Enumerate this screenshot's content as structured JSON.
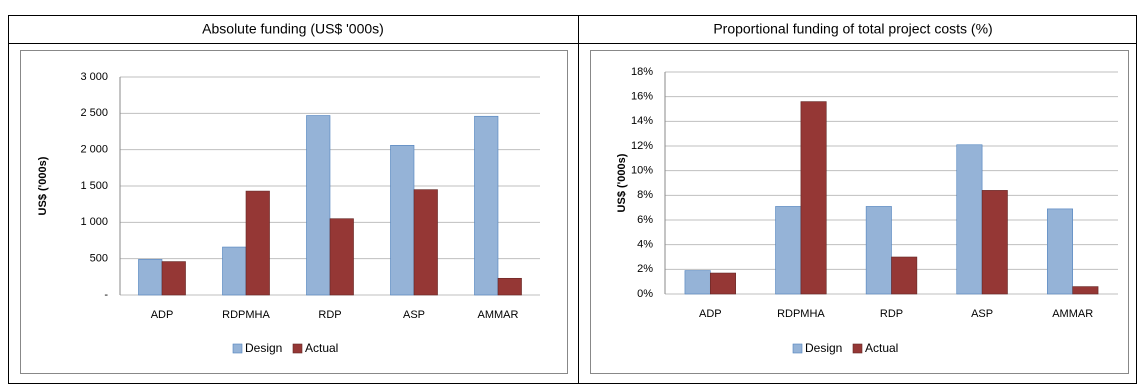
{
  "chart_data": [
    {
      "type": "bar",
      "title": "Absolute funding (US$ '000s)",
      "y_label": "US$ ('000s)",
      "categories": [
        "ADP",
        "RDPMHA",
        "RDP",
        "ASP",
        "AMMAR"
      ],
      "series": [
        {
          "name": "Design",
          "color": "#95b3d7",
          "values": [
            490,
            660,
            2470,
            2060,
            2460
          ]
        },
        {
          "name": "Actual",
          "color": "#953735",
          "values": [
            460,
            1430,
            1050,
            1450,
            230
          ]
        }
      ],
      "ylim": [
        0,
        3000
      ],
      "yticks": [
        {
          "value": 0,
          "label": "-"
        },
        500,
        {
          "value": 1000,
          "label": "1 000"
        },
        {
          "value": 1500,
          "label": "1 500"
        },
        {
          "value": 2000,
          "label": "2 000"
        },
        {
          "value": 2500,
          "label": "2 500"
        },
        {
          "value": 3000,
          "label": "3 000"
        }
      ],
      "grid": true,
      "legend": "bottom"
    },
    {
      "type": "bar",
      "title": "Proportional funding of total project costs (%)",
      "y_label": "US$ ('000s)",
      "categories": [
        "ADP",
        "RDPMHA",
        "RDP",
        "ASP",
        "AMMAR"
      ],
      "series": [
        {
          "name": "Design",
          "color": "#95b3d7",
          "values": [
            1.9,
            7.1,
            7.1,
            12.1,
            6.9
          ]
        },
        {
          "name": "Actual",
          "color": "#953735",
          "values": [
            1.7,
            15.6,
            3.0,
            8.4,
            0.6
          ]
        }
      ],
      "ylim": [
        0,
        18
      ],
      "yticks": [
        {
          "value": 0,
          "label": "0%"
        },
        {
          "value": 2,
          "label": "2%"
        },
        {
          "value": 4,
          "label": "4%"
        },
        {
          "value": 6,
          "label": "6%"
        },
        {
          "value": 8,
          "label": "8%"
        },
        {
          "value": 10,
          "label": "10%"
        },
        {
          "value": 12,
          "label": "12%"
        },
        {
          "value": 14,
          "label": "14%"
        },
        {
          "value": 16,
          "label": "16%"
        },
        {
          "value": 18,
          "label": "18%"
        }
      ],
      "grid": true,
      "legend": "bottom"
    }
  ]
}
